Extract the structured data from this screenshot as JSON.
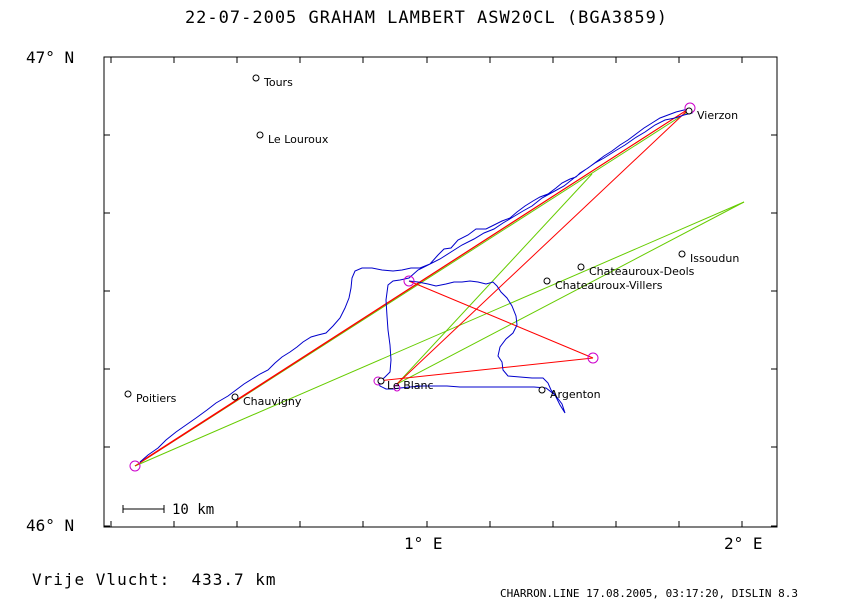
{
  "title": "22-07-2005   GRAHAM LAMBERT   ASW20CL (BGA3859)",
  "axes": {
    "y_top_label": "47° N",
    "y_bottom_label": "46° N",
    "x_mid_label": "1° E",
    "x_right_label": "2° E"
  },
  "scale_bar_label": "10 km",
  "footer": {
    "distance": "Vrije Vlucht:  433.7 km",
    "info": "CHARRON.LINE 17.08.2005, 03:17:20, DISLIN 8.3"
  },
  "colors": {
    "track": "#0000cc",
    "task_legs": "#ff0000",
    "sector_lines": "#66cc00",
    "turnpoint_circle": "#cc00cc",
    "frame": "#000000"
  },
  "cities": [
    {
      "name": "Tours"
    },
    {
      "name": "Le Louroux"
    },
    {
      "name": "Vierzon"
    },
    {
      "name": "Issoudun"
    },
    {
      "name": "Chateauroux-Deols"
    },
    {
      "name": "Chateauroux-Villers"
    },
    {
      "name": "Poitiers"
    },
    {
      "name": "Chauvigny"
    },
    {
      "name": "Le Blanc"
    },
    {
      "name": "Argenton"
    }
  ]
}
